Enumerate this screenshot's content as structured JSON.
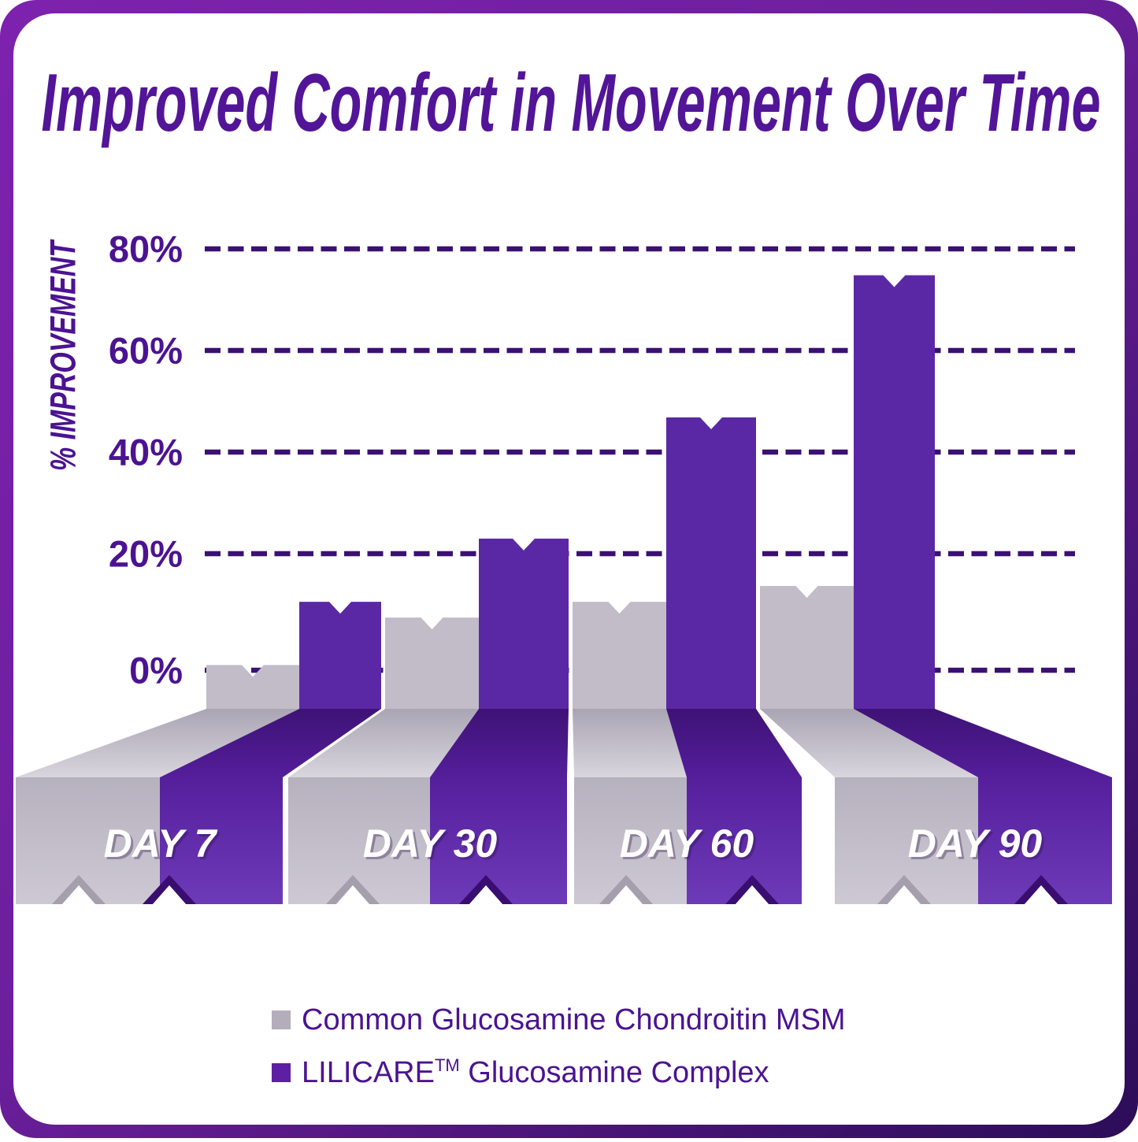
{
  "title": "Improved Comfort in Movement Over Time",
  "chart_data": {
    "type": "bar",
    "title": "Improved Comfort in Movement Over Time",
    "xlabel": "",
    "ylabel": "% IMPROVEMENT",
    "categories": [
      "DAY 7",
      "DAY 30",
      "DAY 60",
      "DAY 90"
    ],
    "series": [
      {
        "name": "Common Glucosamine Chondroitin MSM",
        "color_hex": "#b4aeba",
        "values": [
          1,
          10,
          13,
          16
        ]
      },
      {
        "name": "LILICARE™ Glucosamine Complex",
        "color_hex": "#5c20a4",
        "values": [
          13,
          25,
          48,
          75
        ]
      }
    ],
    "yticks": [
      "80%",
      "60%",
      "40%",
      "20%",
      "0%"
    ],
    "ytick_values": [
      80,
      60,
      40,
      20,
      0
    ],
    "ylim": [
      0,
      80
    ],
    "gridlines": "dashed",
    "legend_position": "bottom",
    "style": "3d-perspective-columns"
  },
  "legend": {
    "common_label": "Common Glucosamine Chondroitin MSM",
    "lilicare_brand": "LILICARE",
    "lilicare_tm": "TM",
    "lilicare_rest": " Glucosamine Complex"
  },
  "colors": {
    "frame_light": "#7d22ae",
    "frame_mid": "#5c1a8e",
    "frame_dark": "#2c0d58",
    "card": "#ffffff",
    "title_text": "#521597",
    "axis_text": "#4b1391",
    "gridline": "#3a1173",
    "gray_bar": "#c1bcc8",
    "gray_slant_back": "#aaa5b3",
    "gray_slant_front": "#d8d5dd",
    "gray_face_top": "#b6b1be",
    "gray_face_bottom": "#cdc9d4",
    "gray_notch_shade": "#a49ead",
    "purple_bar": "#5b28a5",
    "purple_slant_back": "#3e1276",
    "purple_slant_front": "#541e9a",
    "purple_face_top": "#551f9c",
    "purple_face_bottom": "#6d3ab8",
    "purple_notch_shade": "#390e70",
    "day_label_text": "#ffffff",
    "legend_gray_swatch": "#b4aeba",
    "legend_purple_swatch": "#5c20a4"
  }
}
